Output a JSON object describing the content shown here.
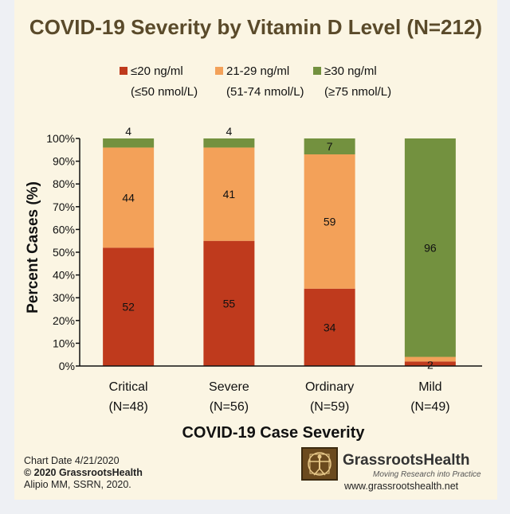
{
  "chart_data": {
    "type": "bar",
    "stacked": true,
    "title": "COVID-19 Severity by Vitamin D Level (N=212)",
    "xlabel": "COVID-19 Case Severity",
    "ylabel": "Percent Cases (%)",
    "ylim": [
      0,
      100
    ],
    "yticks": [
      "0%",
      "10%",
      "20%",
      "30%",
      "40%",
      "50%",
      "60%",
      "70%",
      "80%",
      "90%",
      "100%"
    ],
    "categories": [
      "Critical",
      "Severe",
      "Ordinary",
      "Mild"
    ],
    "category_counts": [
      "(N=48)",
      "(N=56)",
      "(N=59)",
      "(N=49)"
    ],
    "series": [
      {
        "name": "≤20 ng/ml",
        "sub": "(≤50 nmol/L)",
        "color": "#bf3a1d",
        "values": [
          52,
          55,
          34,
          2
        ]
      },
      {
        "name": "21-29 ng/ml",
        "sub": "(51-74 nmol/L)",
        "color": "#f3a159",
        "values": [
          44,
          41,
          59,
          2
        ]
      },
      {
        "name": "≥30 ng/ml",
        "sub": "(≥75 nmol/L)",
        "color": "#73913f",
        "values": [
          4,
          4,
          7,
          96
        ]
      }
    ],
    "data_labels": [
      [
        "52",
        "44",
        "4"
      ],
      [
        "55",
        "41",
        "4"
      ],
      [
        "34",
        "59",
        "7"
      ],
      [
        "2",
        "",
        "96"
      ]
    ],
    "legend_position": "top"
  },
  "footer": {
    "chart_date": "Chart Date 4/21/2020",
    "copyright": "© 2020 GrassrootsHealth",
    "citation": "Alipio MM, SSRN, 2020.",
    "brand": "GrassrootsHealth",
    "tagline": "Moving Research into Practice",
    "website": "www.grassrootshealth.net"
  },
  "colors": {
    "title": "#5a4a2a",
    "background": "#fbf5e3"
  }
}
